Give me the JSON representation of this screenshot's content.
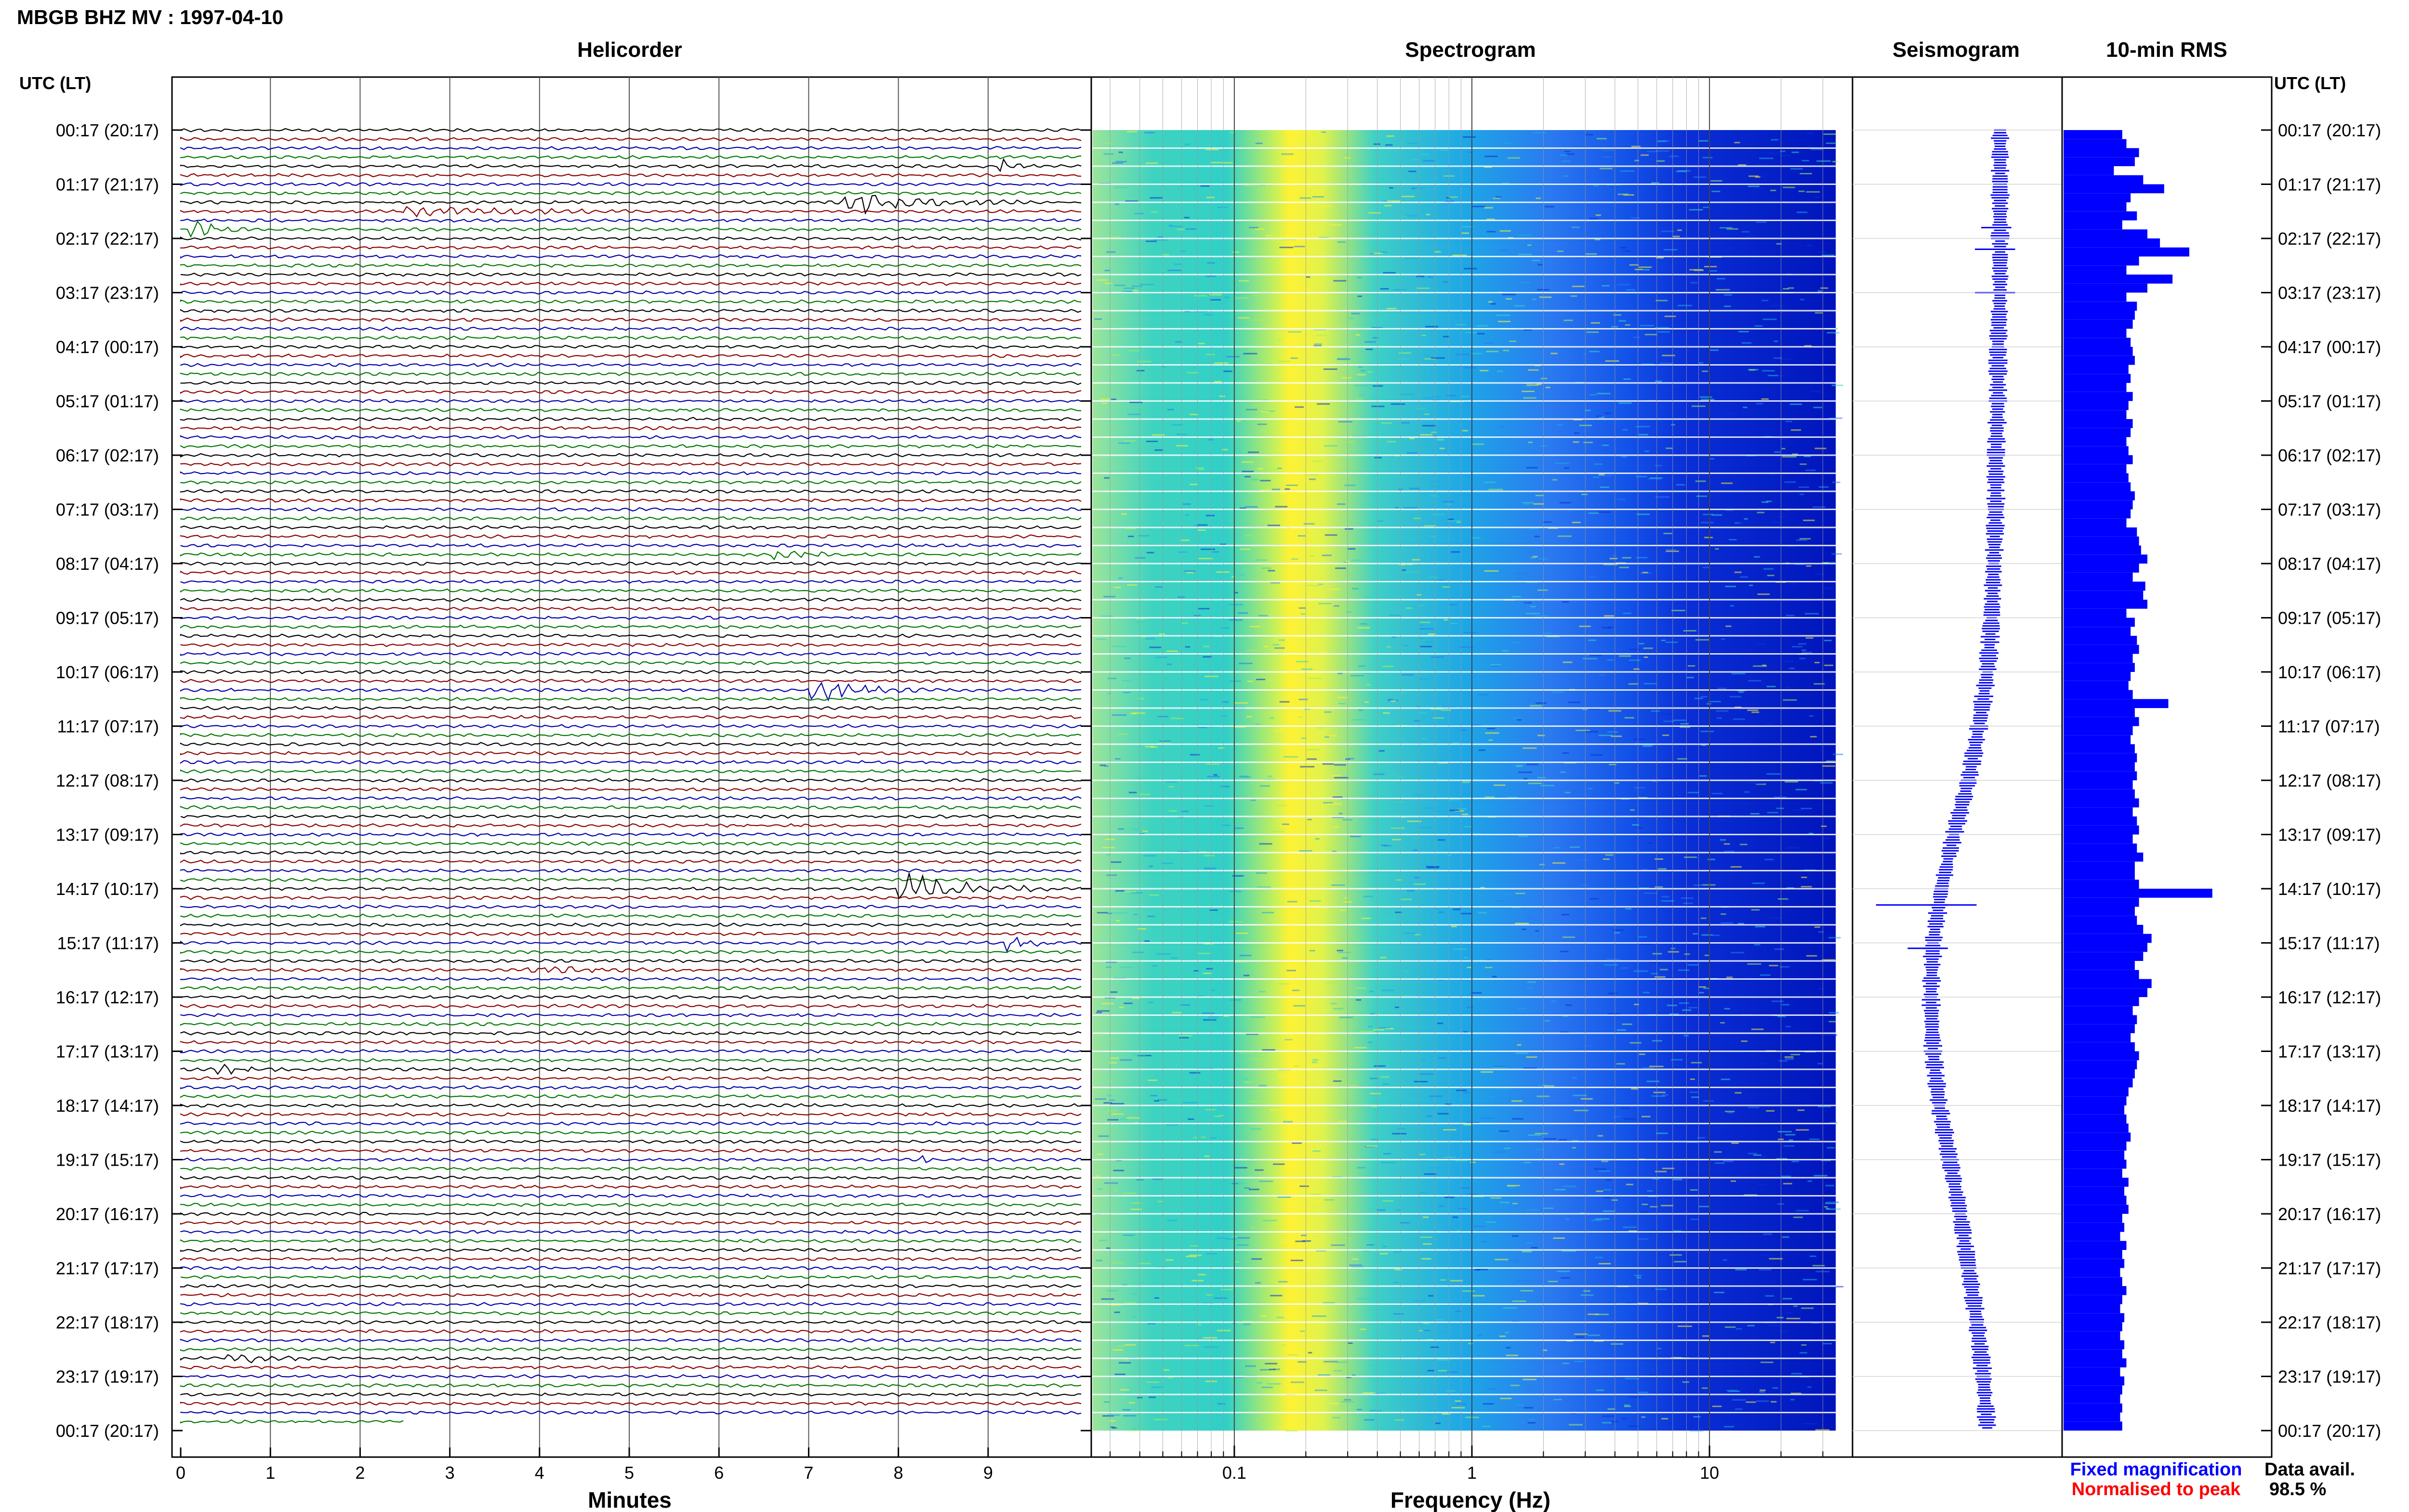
{
  "header": {
    "station_title": "MBGB BHZ MV : 1997-04-10",
    "utc_lt_label": "UTC (LT)",
    "utc_lt_label_right": "UTC (LT)"
  },
  "panels": {
    "helicorder_title": "Helicorder",
    "spectrogram_title": "Spectrogram",
    "seismogram_title": "Seismogram",
    "rms_title": "10-min RMS"
  },
  "axes": {
    "helicorder_xlabel": "Minutes",
    "spectrogram_xlabel": "Frequency (Hz)",
    "minute_ticks": [
      "0",
      "1",
      "2",
      "3",
      "4",
      "5",
      "6",
      "7",
      "8",
      "9"
    ],
    "frequency_ticks": [
      "0.1",
      "1",
      "10"
    ]
  },
  "time_labels": [
    "00:17 (20:17)",
    "01:17 (21:17)",
    "02:17 (22:17)",
    "03:17 (23:17)",
    "04:17 (00:17)",
    "05:17 (01:17)",
    "06:17 (02:17)",
    "07:17 (03:17)",
    "08:17 (04:17)",
    "09:17 (05:17)",
    "10:17 (06:17)",
    "11:17 (07:17)",
    "12:17 (08:17)",
    "13:17 (09:17)",
    "14:17 (10:17)",
    "15:17 (11:17)",
    "16:17 (12:17)",
    "17:17 (13:17)",
    "18:17 (14:17)",
    "19:17 (15:17)",
    "20:17 (16:17)",
    "21:17 (17:17)",
    "22:17 (18:17)",
    "23:17 (19:17)",
    "00:17 (20:17)"
  ],
  "footer": {
    "legend_fixed": "Fixed magnification",
    "legend_normalised": "Normalised to peak",
    "data_avail_label": "Data avail.",
    "data_avail_value": "98.5 %"
  },
  "colors": {
    "fixed": "#0000ff",
    "normalised": "#ff0000",
    "trace_cycle": [
      "#000000",
      "#8b0000",
      "#0000aa",
      "#007700"
    ],
    "rms_bar": "#0000ff"
  },
  "chart_data": [
    {
      "type": "line",
      "title": "Helicorder",
      "xlabel": "Minutes",
      "xlim": [
        0,
        10
      ],
      "rows": 144,
      "row_minutes": 10,
      "events": [
        {
          "row": 4,
          "minute": 9.1,
          "amp": 2.0,
          "dur": 0.5
        },
        {
          "row": 8,
          "minute": 7.4,
          "amp": 3.0,
          "dur": 2.0
        },
        {
          "row": 9,
          "minute": 2.5,
          "amp": 1.0,
          "dur": 3.5
        },
        {
          "row": 11,
          "minute": 0.1,
          "amp": 2.5,
          "dur": 0.8
        },
        {
          "row": 47,
          "minute": 6.6,
          "amp": 1.2,
          "dur": 1.0
        },
        {
          "row": 62,
          "minute": 7.0,
          "amp": 3.0,
          "dur": 1.3
        },
        {
          "row": 84,
          "minute": 8.0,
          "amp": 4.0,
          "dur": 1.7
        },
        {
          "row": 90,
          "minute": 9.2,
          "amp": 2.0,
          "dur": 0.7
        },
        {
          "row": 93,
          "minute": 3.8,
          "amp": 1.0,
          "dur": 2.0
        },
        {
          "row": 104,
          "minute": 0.4,
          "amp": 1.5,
          "dur": 0.8
        },
        {
          "row": 114,
          "minute": 8.2,
          "amp": 1.5,
          "dur": 0.3
        },
        {
          "row": 136,
          "minute": 0.5,
          "amp": 1.5,
          "dur": 1.0
        }
      ]
    },
    {
      "type": "heatmap",
      "title": "Spectrogram",
      "xlabel": "Frequency (Hz)",
      "x_scale": "log",
      "xlim": [
        0.025,
        40
      ],
      "data_extent_hz": [
        0.025,
        34
      ]
    },
    {
      "type": "line",
      "title": "Seismogram",
      "trend": [
        0.52,
        0.52,
        0.52,
        0.52,
        0.51,
        0.51,
        0.5,
        0.5,
        0.49,
        0.48,
        0.46,
        0.42,
        0.37,
        0.3,
        0.24,
        0.2,
        0.19,
        0.2,
        0.23,
        0.28,
        0.33,
        0.37,
        0.41,
        0.44,
        0.46
      ],
      "spikes": [
        {
          "hour": 1.8,
          "size": 0.15
        },
        {
          "hour": 2.2,
          "size": 0.2
        },
        {
          "hour": 3.0,
          "size": 0.2
        },
        {
          "hour": 14.3,
          "size": 0.5
        },
        {
          "hour": 15.1,
          "size": 0.2
        }
      ]
    },
    {
      "type": "bar",
      "title": "10-min RMS",
      "orientation": "horizontal",
      "values": [
        0.28,
        0.3,
        0.36,
        0.34,
        0.24,
        0.38,
        0.48,
        0.32,
        0.3,
        0.35,
        0.28,
        0.4,
        0.46,
        0.6,
        0.36,
        0.3,
        0.52,
        0.4,
        0.3,
        0.35,
        0.34,
        0.33,
        0.3,
        0.32,
        0.33,
        0.34,
        0.31,
        0.32,
        0.3,
        0.33,
        0.31,
        0.3,
        0.33,
        0.32,
        0.3,
        0.31,
        0.33,
        0.3,
        0.31,
        0.32,
        0.34,
        0.33,
        0.32,
        0.3,
        0.35,
        0.36,
        0.37,
        0.4,
        0.36,
        0.33,
        0.39,
        0.38,
        0.4,
        0.3,
        0.34,
        0.32,
        0.35,
        0.36,
        0.33,
        0.34,
        0.32,
        0.31,
        0.33,
        0.5,
        0.34,
        0.36,
        0.33,
        0.32,
        0.34,
        0.35,
        0.34,
        0.35,
        0.33,
        0.34,
        0.36,
        0.33,
        0.35,
        0.36,
        0.33,
        0.35,
        0.38,
        0.34,
        0.34,
        0.36,
        0.71,
        0.36,
        0.34,
        0.35,
        0.38,
        0.42,
        0.4,
        0.38,
        0.34,
        0.36,
        0.42,
        0.4,
        0.36,
        0.33,
        0.35,
        0.34,
        0.32,
        0.34,
        0.36,
        0.35,
        0.34,
        0.33,
        0.31,
        0.3,
        0.29,
        0.3,
        0.31,
        0.32,
        0.3,
        0.29,
        0.3,
        0.28,
        0.31,
        0.29,
        0.3,
        0.31,
        0.28,
        0.29,
        0.27,
        0.3,
        0.28,
        0.29,
        0.27,
        0.28,
        0.3,
        0.28,
        0.27,
        0.29,
        0.28,
        0.27,
        0.29,
        0.28,
        0.3,
        0.27,
        0.29,
        0.28,
        0.27,
        0.28,
        0.27,
        0.28
      ]
    }
  ]
}
